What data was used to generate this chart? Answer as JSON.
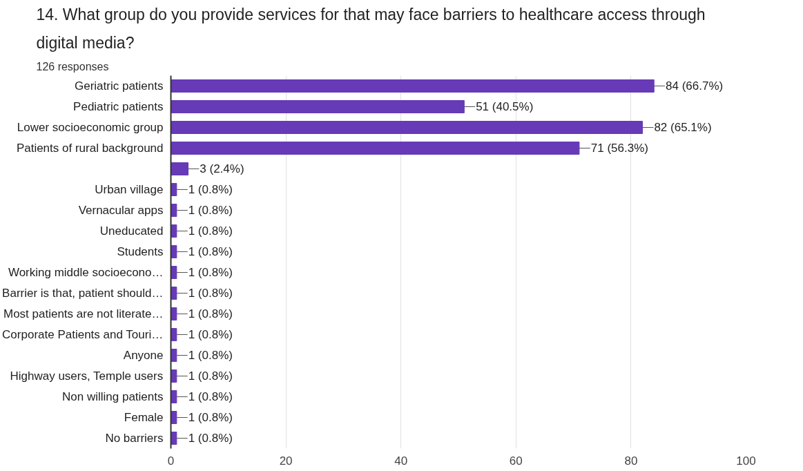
{
  "chart_data": {
    "type": "bar",
    "orientation": "horizontal",
    "title": "14. What group do you provide services for that may face barriers to healthcare access through digital media?",
    "subtitle": "126 responses",
    "categories": [
      "Geriatric patients",
      "Pediatric patients",
      "Lower socioeconomic group",
      "Patients of rural background",
      null,
      "Urban village",
      "Vernacular apps",
      "Uneducated",
      "Students",
      "Working middle socioecono…",
      "Barrier is that, patient should…",
      "Most patients are not literate…",
      "Corporate Patients and Touri…",
      "Anyone",
      "Highway users, Temple users",
      "Non willing patients",
      "Female",
      "No barriers"
    ],
    "values": [
      84,
      51,
      82,
      71,
      3,
      1,
      1,
      1,
      1,
      1,
      1,
      1,
      1,
      1,
      1,
      1,
      1,
      1
    ],
    "value_labels": [
      "84 (66.7%)",
      "51 (40.5%)",
      "82 (65.1%)",
      "71 (56.3%)",
      "3 (2.4%)",
      "1 (0.8%)",
      "1 (0.8%)",
      "1 (0.8%)",
      "1 (0.8%)",
      "1 (0.8%)",
      "1 (0.8%)",
      "1 (0.8%)",
      "1 (0.8%)",
      "1 (0.8%)",
      "1 (0.8%)",
      "1 (0.8%)",
      "1 (0.8%)",
      "1 (0.8%)"
    ],
    "color": "#673ab7",
    "xlim": [
      0,
      100
    ],
    "xticks": [
      0,
      20,
      40,
      60,
      80,
      100
    ],
    "grid": "x"
  }
}
